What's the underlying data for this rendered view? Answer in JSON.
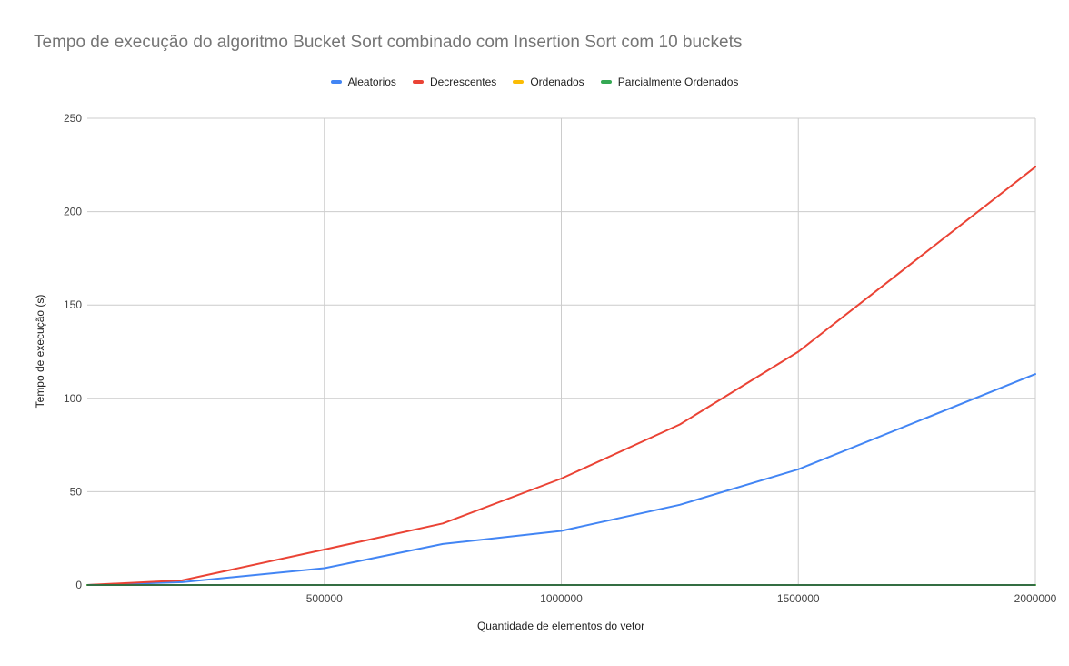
{
  "chart_data": {
    "type": "line",
    "title": "Tempo de execução do algoritmo Bucket Sort combinado com Insertion Sort com 10 buckets",
    "xlabel": "Quantidade de elementos do vetor",
    "ylabel": "Tempo de execução (s)",
    "xlim": [
      0,
      2000000
    ],
    "ylim": [
      0,
      250
    ],
    "xticks": [
      500000,
      1000000,
      1500000,
      2000000
    ],
    "xtick_labels": [
      "500000",
      "1000000",
      "1500000",
      "2000000"
    ],
    "yticks": [
      0,
      50,
      100,
      150,
      200,
      250
    ],
    "ytick_labels": [
      "0",
      "50",
      "100",
      "150",
      "200",
      "250"
    ],
    "grid": true,
    "legend_position": "top",
    "x": [
      0,
      200000,
      500000,
      750000,
      1000000,
      1250000,
      1500000,
      2000000
    ],
    "series": [
      {
        "name": "Aleatorios",
        "color": "#4285f4",
        "values": [
          0,
          1.5,
          9,
          22,
          29,
          43,
          62,
          113
        ]
      },
      {
        "name": "Decrescentes",
        "color": "#ea4335",
        "values": [
          0,
          2.5,
          19,
          33,
          57,
          86,
          125,
          224
        ]
      },
      {
        "name": "Ordenados",
        "color": "#fbbc04",
        "values": [
          0,
          0,
          0,
          0,
          0,
          0,
          0,
          0
        ]
      },
      {
        "name": "Parcialmente Ordenados",
        "color": "#34a853",
        "values": [
          0,
          0,
          0,
          0,
          0,
          0,
          0,
          0
        ]
      }
    ]
  }
}
